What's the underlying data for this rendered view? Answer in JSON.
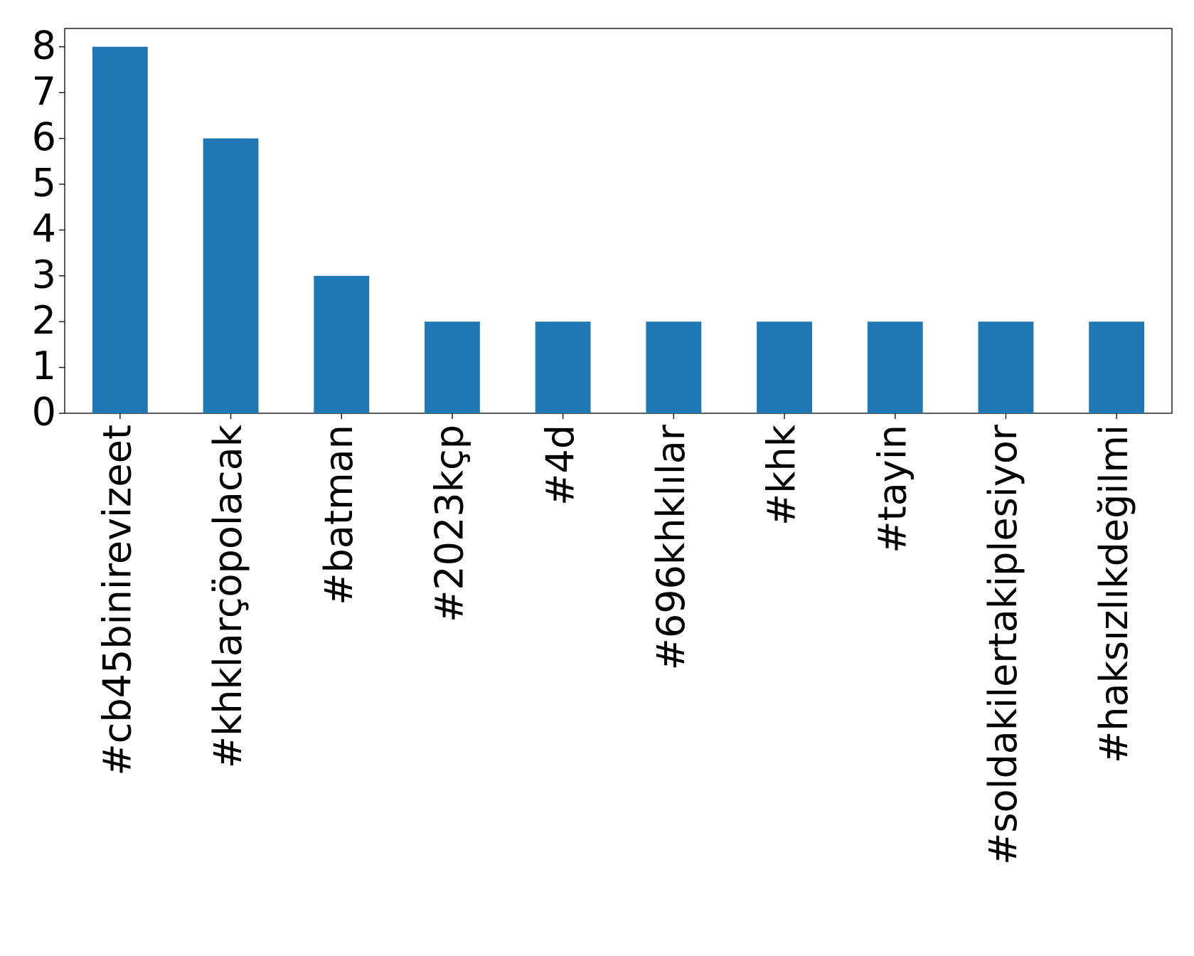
{
  "chart_data": {
    "type": "bar",
    "categories": [
      "#cb45binirevizeet",
      "#khklarçöpolacak",
      "#batman",
      "#2023kçp",
      "#4d",
      "#696khklılar",
      "#khk",
      "#tayin",
      "#soldakilertakiplesiyor",
      "#haksızlıkdeğilmi"
    ],
    "values": [
      8,
      6,
      3,
      2,
      2,
      2,
      2,
      2,
      2,
      2
    ],
    "color": "#1f77b4",
    "ylim": [
      0,
      8.4
    ],
    "yticks": [
      0,
      1,
      2,
      3,
      4,
      5,
      6,
      7,
      8
    ],
    "grid": false
  }
}
